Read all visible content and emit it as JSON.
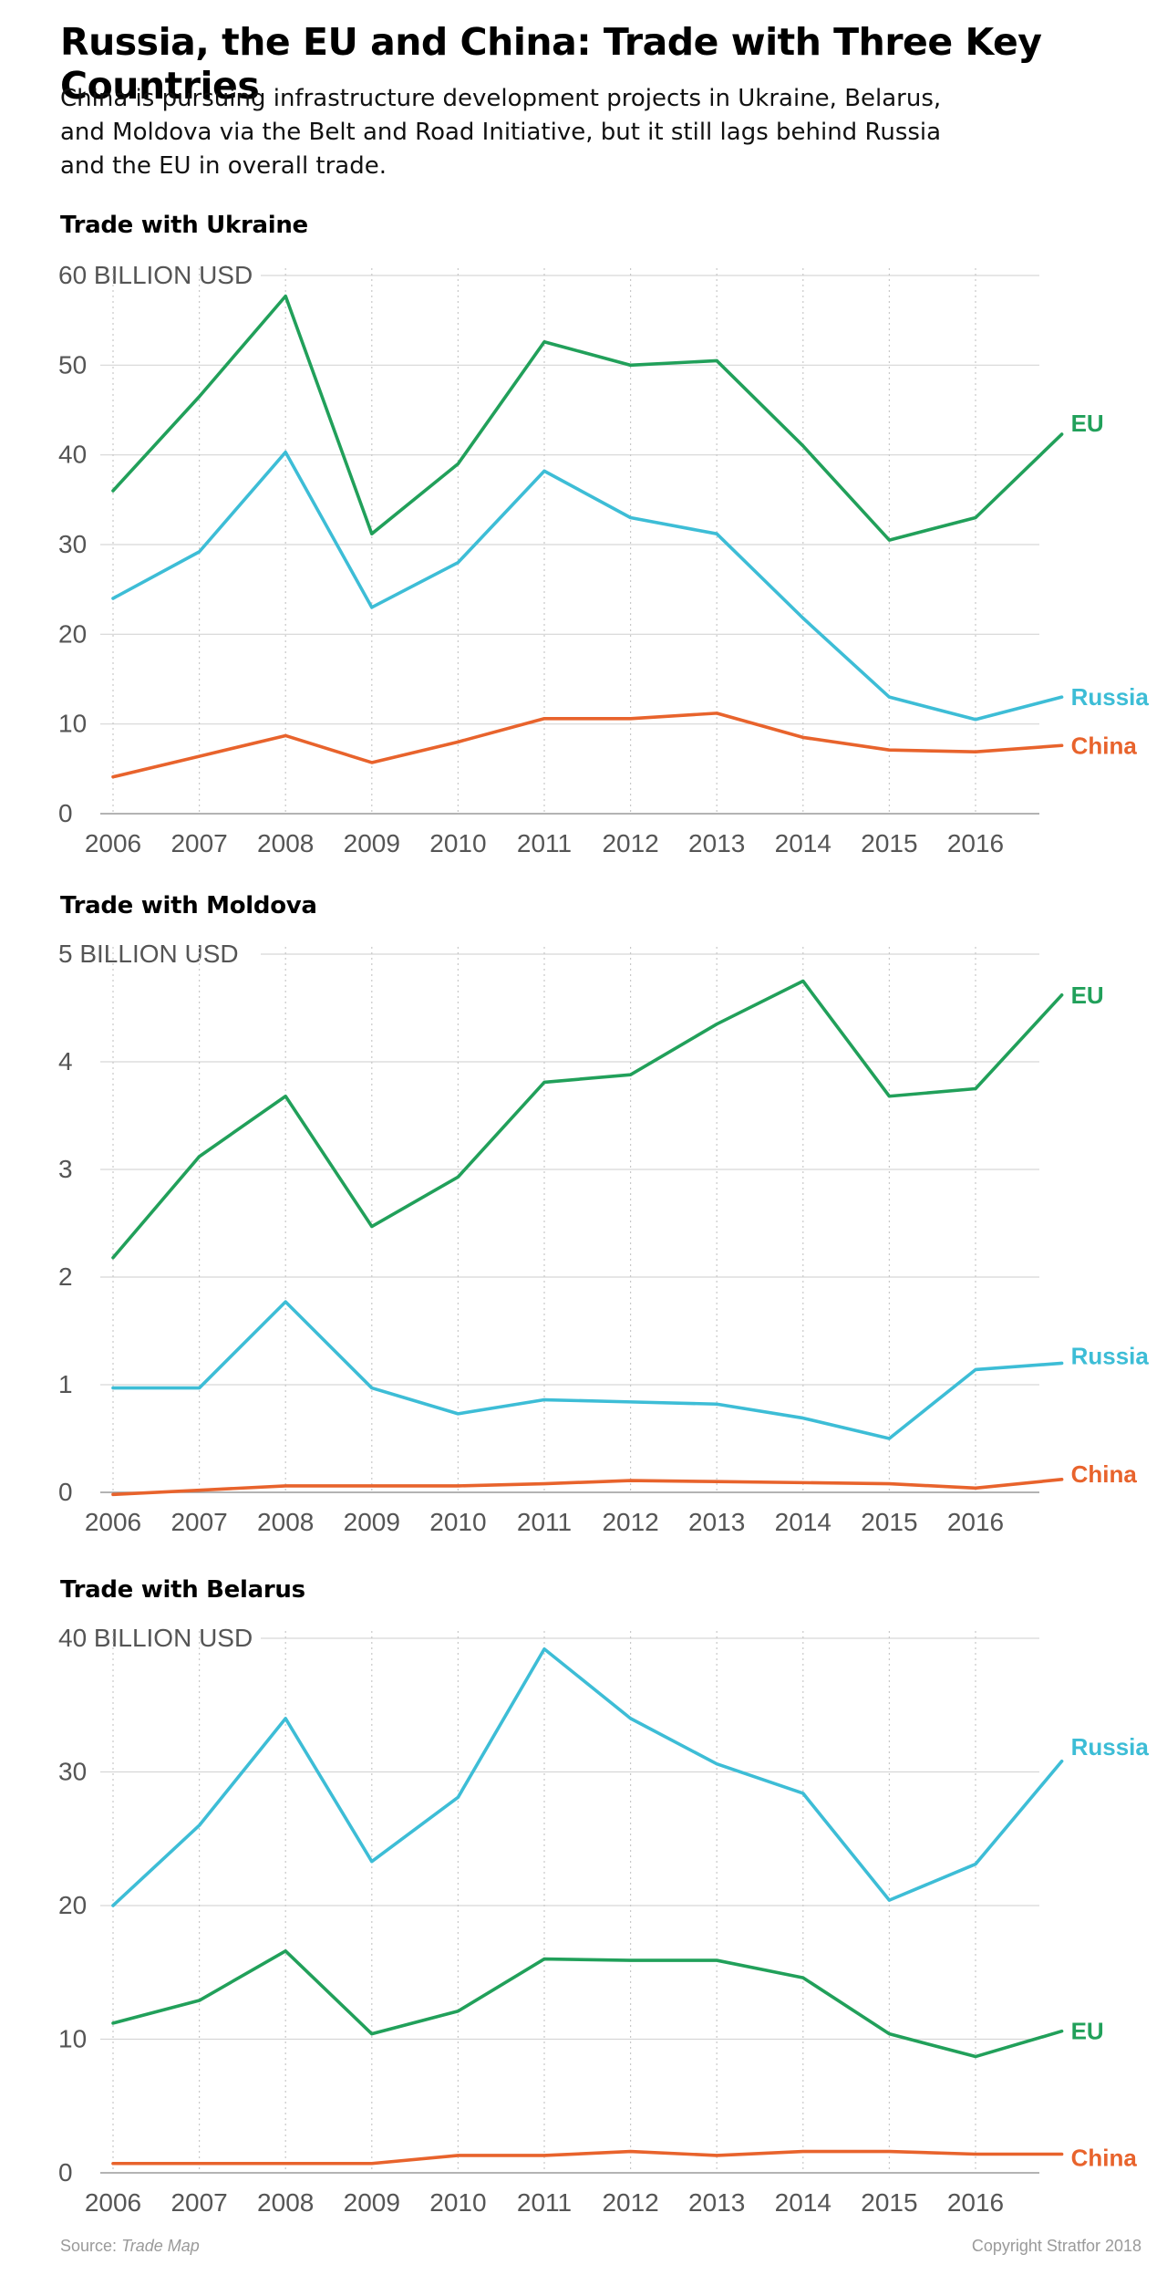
{
  "title": "Russia, the EU and China: Trade with Three Key Countries",
  "subtitle": "China is pursuing infrastructure development projects in Ukraine, Belarus, and Moldova via the Belt and Road Initiative, but it still lags behind Russia and the EU in overall trade.",
  "colors": {
    "EU": "#21a05a",
    "Russia": "#3dbdd6",
    "China": "#e8632c",
    "grid": "#d6d6d6",
    "axis": "#555555"
  },
  "chart_data": [
    {
      "type": "line",
      "title": "Trade with Ukraine",
      "ylabel": "BILLION USD",
      "x": [
        "2006",
        "2007",
        "2008",
        "2009",
        "2010",
        "2011",
        "2012",
        "2013",
        "2014",
        "2015",
        "2016",
        "2017"
      ],
      "x_tick_labels": [
        "2006",
        "2007",
        "2008",
        "2009",
        "2010",
        "2011",
        "2012",
        "2013",
        "2014",
        "2015",
        "2016"
      ],
      "ylim": [
        0,
        60
      ],
      "yticks": [
        0,
        10,
        20,
        30,
        40,
        50,
        60
      ],
      "grid": true,
      "legend": "direct labels at right",
      "series": [
        {
          "name": "EU",
          "values": [
            36,
            46.5,
            57.7,
            31.2,
            39,
            52.6,
            50,
            50.5,
            41,
            30.5,
            33,
            42.3
          ]
        },
        {
          "name": "Russia",
          "values": [
            24,
            29.2,
            40.3,
            23,
            28,
            38.2,
            33,
            31.2,
            21.8,
            13,
            10.5,
            13
          ]
        },
        {
          "name": "China",
          "values": [
            4.1,
            6.4,
            8.7,
            5.7,
            8,
            10.6,
            10.6,
            11.2,
            8.5,
            7.1,
            6.9,
            7.6
          ]
        }
      ]
    },
    {
      "type": "line",
      "title": "Trade with Moldova",
      "ylabel": "BILLION USD",
      "x": [
        "2006",
        "2007",
        "2008",
        "2009",
        "2010",
        "2011",
        "2012",
        "2013",
        "2014",
        "2015",
        "2016",
        "2017"
      ],
      "x_tick_labels": [
        "2006",
        "2007",
        "2008",
        "2009",
        "2010",
        "2011",
        "2012",
        "2013",
        "2014",
        "2015",
        "2016"
      ],
      "ylim": [
        0,
        5
      ],
      "yticks": [
        0,
        1,
        2,
        3,
        4,
        5
      ],
      "grid": true,
      "legend": "direct labels at right",
      "series": [
        {
          "name": "EU",
          "values": [
            2.18,
            3.12,
            3.68,
            2.47,
            2.93,
            3.81,
            3.88,
            4.35,
            4.75,
            3.68,
            3.75,
            4.62
          ]
        },
        {
          "name": "Russia",
          "values": [
            0.97,
            0.97,
            1.77,
            0.97,
            0.73,
            0.86,
            0.84,
            0.82,
            0.69,
            0.5,
            1.14,
            1.2
          ]
        },
        {
          "name": "China",
          "values": [
            -0.02,
            0.02,
            0.06,
            0.06,
            0.06,
            0.08,
            0.11,
            0.1,
            0.09,
            0.08,
            0.04,
            0.12
          ]
        }
      ]
    },
    {
      "type": "line",
      "title": "Trade with Belarus",
      "ylabel": "BILLION USD",
      "x": [
        "2006",
        "2007",
        "2008",
        "2009",
        "2010",
        "2011",
        "2012",
        "2013",
        "2014",
        "2015",
        "2016",
        "2017"
      ],
      "x_tick_labels": [
        "2006",
        "2007",
        "2008",
        "2009",
        "2010",
        "2011",
        "2012",
        "2013",
        "2014",
        "2015",
        "2016"
      ],
      "ylim": [
        0,
        40
      ],
      "yticks": [
        0,
        10,
        20,
        30,
        40
      ],
      "grid": true,
      "legend": "direct labels at right",
      "series": [
        {
          "name": "Russia",
          "values": [
            20,
            26,
            34,
            23.3,
            28.1,
            39.2,
            34,
            30.6,
            28.4,
            20.4,
            23.1,
            30.8
          ]
        },
        {
          "name": "EU",
          "values": [
            11.2,
            12.9,
            16.6,
            10.4,
            12.1,
            16,
            15.9,
            15.9,
            14.6,
            10.4,
            8.7,
            10.6
          ]
        },
        {
          "name": "China",
          "values": [
            0.7,
            0.7,
            0.7,
            0.7,
            1.3,
            1.3,
            1.6,
            1.3,
            1.6,
            1.6,
            1.4,
            1.4
          ]
        }
      ]
    }
  ],
  "footer": {
    "source_prefix": "Source:",
    "source_name": "Trade Map",
    "copyright": "Copyright Stratfor 2018"
  }
}
